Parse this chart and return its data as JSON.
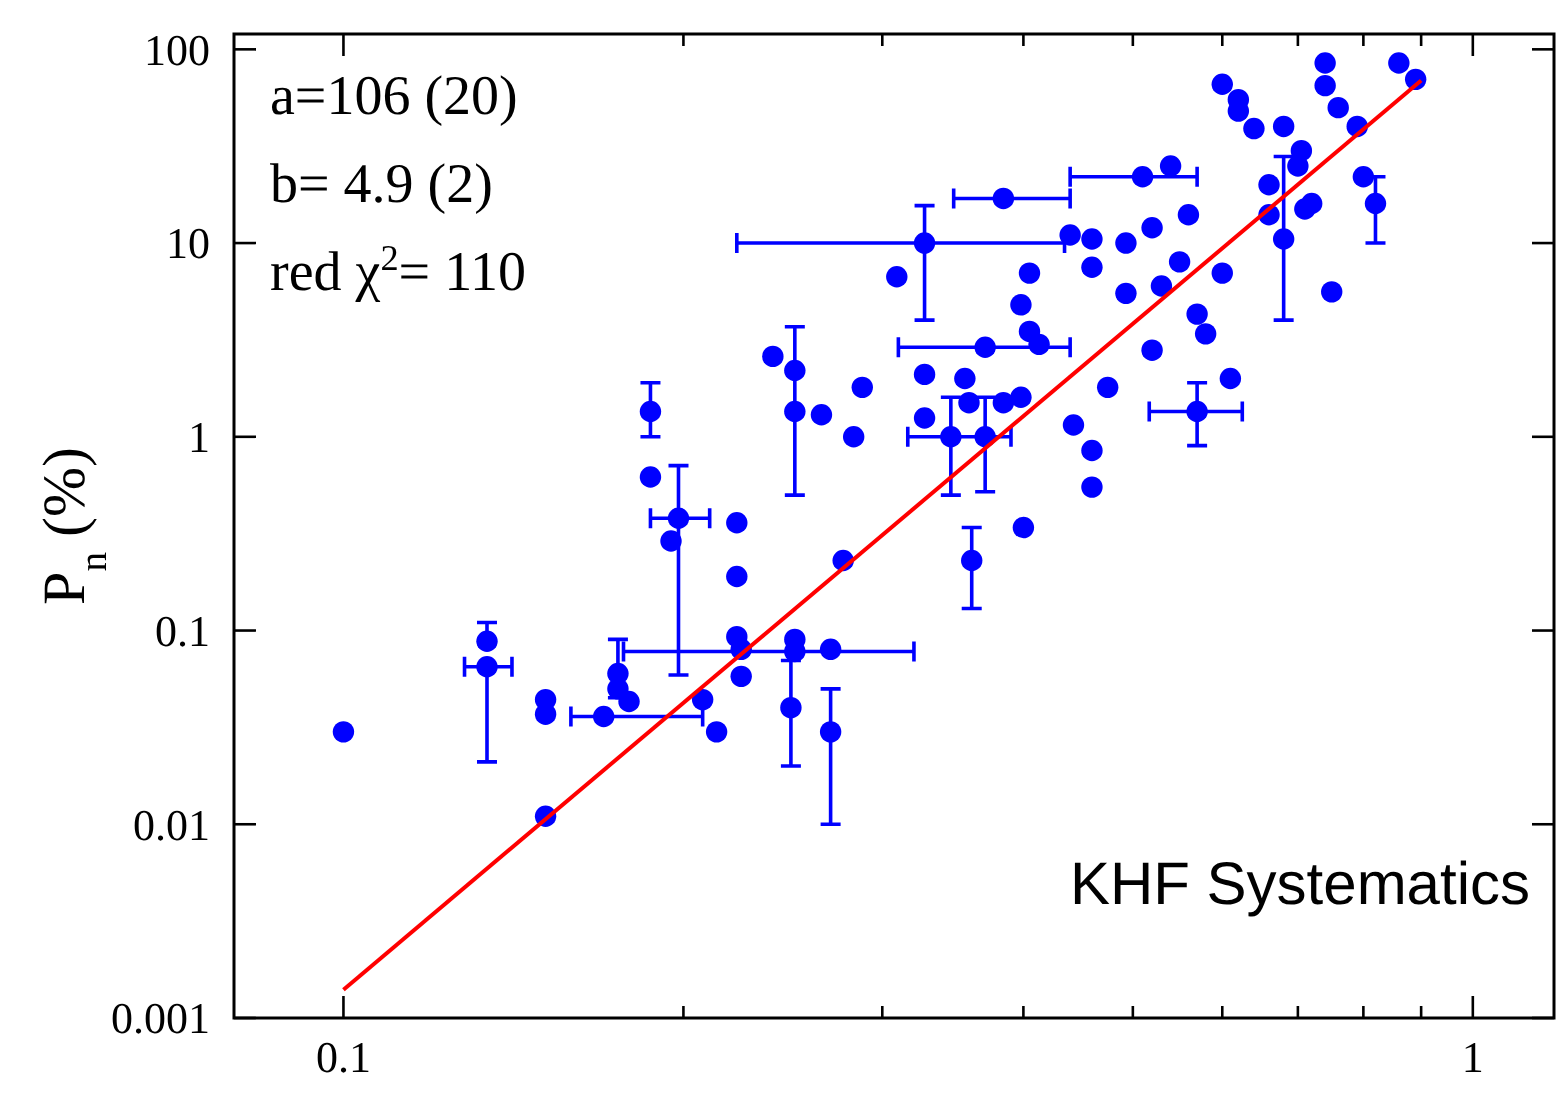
{
  "chart_data": {
    "type": "scatter",
    "ylabel": "P$_{n}$ (%)",
    "log": "xy",
    "grid": false,
    "xlim": [
      0.08,
      1.18
    ],
    "ylim": [
      0.001,
      120
    ],
    "xticks": [
      0.1,
      {
        "value": 0.2,
        "label": null
      },
      {
        "value": 0.3,
        "label": null
      },
      {
        "value": 0.4,
        "label": null
      },
      {
        "value": 0.5,
        "label": null
      },
      {
        "value": 0.6,
        "label": null
      },
      {
        "value": 0.7,
        "label": null
      },
      {
        "value": 0.8,
        "label": null
      },
      {
        "value": 0.9,
        "label": null
      },
      1
    ],
    "yticks": [
      0.001,
      0.01,
      0.1,
      1,
      10,
      100
    ],
    "annotations": [
      "a=106 (20)",
      "b= 4.9 (2)",
      "red χ$^{2}$= 110",
      "KHF Systematics"
    ],
    "series": [
      {
        "color": "#0000ff",
        "marker": "circle",
        "x": [
          0.1,
          0.134,
          0.134,
          0.151,
          0.151,
          0.151,
          0.175,
          0.175,
          0.17,
          0.179,
          0.187,
          0.187,
          0.198,
          0.195,
          0.208,
          0.214,
          0.223,
          0.223,
          0.223,
          0.225,
          0.225,
          0.251,
          0.251,
          0.249,
          0.27,
          0.27,
          0.277,
          0.24,
          0.251,
          0.251,
          0.265,
          0.283,
          0.288,
          0.327,
          0.327,
          0.355,
          0.345,
          0.358,
          0.37,
          0.37,
          0.384,
          0.398,
          0.405,
          0.413,
          0.398,
          0.405,
          0.4,
          0.36,
          0.309,
          0.327,
          0.384,
          0.443,
          0.46,
          0.46,
          0.475,
          0.52,
          0.57,
          0.61,
          0.75,
          0.68,
          0.46,
          0.493,
          0.493,
          0.46,
          0.44,
          0.52,
          0.55,
          0.53,
          0.6,
          0.57,
          0.58,
          0.51,
          0.54,
          0.56,
          0.6,
          0.62,
          0.64,
          0.66,
          0.7,
          0.72,
          0.74,
          0.76,
          0.79,
          0.82,
          0.8,
          0.86,
          0.89,
          0.74,
          0.66,
          0.71,
          0.62,
          0.68,
          0.705
        ],
        "values": [
          0.03,
          0.088,
          0.065,
          0.044,
          0.037,
          0.011,
          0.06,
          0.05,
          0.036,
          0.043,
          1.35,
          0.62,
          0.38,
          0.29,
          0.044,
          0.03,
          0.36,
          0.19,
          0.093,
          0.08,
          0.058,
          0.09,
          0.078,
          0.04,
          0.08,
          0.03,
          0.23,
          2.6,
          2.2,
          1.35,
          1.3,
          1.0,
          1.8,
          2.1,
          1.25,
          2.0,
          1.0,
          1.5,
          2.9,
          1.0,
          1.5,
          1.6,
          3.5,
          3.0,
          4.8,
          7.0,
          0.34,
          0.23,
          6.7,
          10,
          17,
          1.15,
          0.85,
          0.55,
          1.8,
          2.8,
          1.35,
          2.0,
          5.6,
          10.5,
          7.5,
          5.5,
          10,
          10.5,
          11,
          12,
          8,
          6,
          7,
          4.3,
          3.4,
          22,
          25,
          14,
          66,
          48,
          39,
          20,
          25,
          16,
          65,
          50,
          40,
          16,
          22,
          85,
          70,
          85,
          14,
          15,
          55,
          40,
          30
        ],
        "errors": [
          null,
          [
            0.088,
            0.11
          ],
          [
            0.021,
            0.065
          ],
          null,
          null,
          null,
          [
            0.045,
            0.09
          ],
          null,
          null,
          null,
          [
            1.0,
            1.9
          ],
          null,
          [
            0.059,
            0.71
          ],
          null,
          null,
          null,
          null,
          null,
          null,
          null,
          null,
          null,
          null,
          [
            0.02,
            0.07
          ],
          null,
          [
            0.01,
            0.05
          ],
          null,
          null,
          [
            0.5,
            3.7
          ],
          null,
          null,
          null,
          null,
          null,
          null,
          null,
          [
            0.5,
            1.6
          ],
          null,
          null,
          [
            0.52,
            1.6
          ],
          null,
          null,
          null,
          null,
          null,
          null,
          null,
          [
            0.13,
            0.34
          ],
          null,
          [
            4.0,
            15.6
          ],
          null,
          null,
          null,
          null,
          null,
          null,
          [
            0.9,
            1.9
          ],
          null,
          null,
          [
            4.0,
            28
          ],
          null,
          null,
          null,
          null,
          null,
          null,
          null,
          null,
          null,
          null,
          null,
          null,
          null,
          null,
          null,
          null,
          null,
          null,
          null,
          null,
          null,
          null,
          null,
          [
            10,
            22
          ],
          null,
          null,
          null,
          null,
          null,
          null,
          null,
          null,
          null
        ],
        "xerrors": [
          null,
          null,
          [
            0.128,
            0.141
          ],
          null,
          null,
          null,
          null,
          null,
          [
            0.159,
            0.208
          ],
          null,
          null,
          null,
          [
            0.187,
            0.211
          ],
          null,
          null,
          null,
          null,
          null,
          null,
          null,
          null,
          null,
          [
            0.177,
            0.32
          ],
          null,
          null,
          null,
          null,
          null,
          null,
          null,
          null,
          null,
          null,
          null,
          null,
          null,
          [
            0.316,
            0.39
          ],
          null,
          [
            0.31,
            0.44
          ],
          null,
          null,
          null,
          null,
          null,
          null,
          null,
          null,
          null,
          null,
          [
            0.223,
            0.435
          ],
          [
            0.347,
            0.44
          ],
          null,
          null,
          null,
          null,
          null,
          [
            0.517,
            0.625
          ],
          null,
          null,
          null,
          null,
          null,
          null,
          null,
          null,
          null,
          null,
          null,
          null,
          null,
          null,
          [
            0.44,
            0.57
          ],
          null,
          null,
          null,
          null,
          null,
          null,
          null,
          null,
          null,
          null,
          null,
          null,
          null,
          null,
          null,
          null,
          null,
          null,
          null,
          null,
          null
        ]
      },
      {
        "type": "line",
        "color": "#ff0000",
        "marker": "none",
        "x": [
          0.1,
          0.9
        ],
        "values": [
          0.0014,
          69
        ]
      }
    ]
  }
}
